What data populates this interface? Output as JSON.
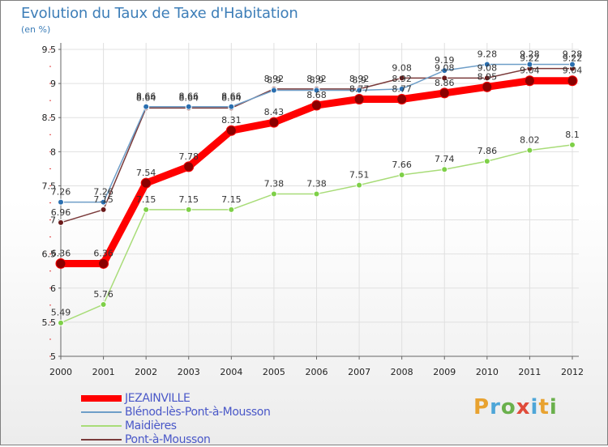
{
  "title": "Evolution du Taux de Taxe d'Habitation",
  "subtitle": "(en %)",
  "logo_text": "Proxiti",
  "colors": {
    "JEZAINVILLE": "#ff0000",
    "Blénod-lès-Pont-à-Mousson": "#6e9ec8",
    "Maidières": "#a8dc78",
    "Pont-à-Mousson": "#7a3a3a",
    "axis_text": "#222222",
    "grid": "#e0e0e0"
  },
  "chart_data": {
    "type": "line",
    "title": "Evolution du Taux de Taxe d'Habitation",
    "ylabel": "(en %)",
    "xlabel": "",
    "x": [
      "2000",
      "2001",
      "2002",
      "2003",
      "2004",
      "2005",
      "2006",
      "2007",
      "2008",
      "2009",
      "2010",
      "2011",
      "2012"
    ],
    "ylim": [
      5,
      9.5
    ],
    "yticks": [
      "5",
      "5.5",
      "6",
      "6.5",
      "7",
      "7.5",
      "8",
      "8.5",
      "9",
      "9.5"
    ],
    "grid": true,
    "legend_position": "bottom-left",
    "series": [
      {
        "name": "Pont-à-Mousson",
        "values": [
          6.96,
          7.15,
          8.64,
          8.64,
          8.64,
          8.92,
          8.92,
          8.92,
          9.08,
          9.08,
          9.08,
          9.22,
          9.22
        ],
        "labels": [
          "6.96",
          "7.15",
          "8.64",
          "8.64",
          "8.64",
          "8.92",
          "8.92",
          "8.92",
          "9.08",
          "9.08",
          "9.08",
          "9.22",
          "9.22"
        ]
      },
      {
        "name": "Blénod-lès-Pont-à-Mousson",
        "values": [
          7.26,
          7.26,
          8.66,
          8.66,
          8.66,
          8.9,
          8.9,
          8.9,
          8.92,
          9.19,
          9.28,
          9.28,
          9.28
        ],
        "labels": [
          "7.26",
          "7.26",
          "8.66",
          "8.66",
          "8.66",
          "8.9",
          "8.9",
          "8.9",
          "8.92",
          "9.19",
          "9.28",
          "9.28",
          "9.28"
        ]
      },
      {
        "name": "Maidières",
        "values": [
          5.49,
          5.76,
          7.15,
          7.15,
          7.15,
          7.38,
          7.38,
          7.51,
          7.66,
          7.74,
          7.86,
          8.02,
          8.1
        ],
        "labels": [
          "5.49",
          "5.76",
          "7.15",
          "7.15",
          "7.15",
          "7.38",
          "7.38",
          "7.51",
          "7.66",
          "7.74",
          "7.86",
          "8.02",
          "8.1"
        ]
      },
      {
        "name": "JEZAINVILLE",
        "values": [
          6.36,
          6.36,
          7.54,
          7.78,
          8.31,
          8.43,
          8.68,
          8.77,
          8.77,
          8.86,
          8.95,
          9.04,
          9.04
        ],
        "labels": [
          "6.36",
          "6.36",
          "7.54",
          "7.78",
          "8.31",
          "8.43",
          "8.68",
          "8.77",
          "8.77",
          "8.86",
          "8.95",
          "9.04",
          "9.04"
        ]
      }
    ]
  },
  "legend": [
    {
      "name": "JEZAINVILLE"
    },
    {
      "name": "Blénod-lès-Pont-à-Mousson"
    },
    {
      "name": "Maidières"
    },
    {
      "name": "Pont-à-Mousson"
    }
  ]
}
